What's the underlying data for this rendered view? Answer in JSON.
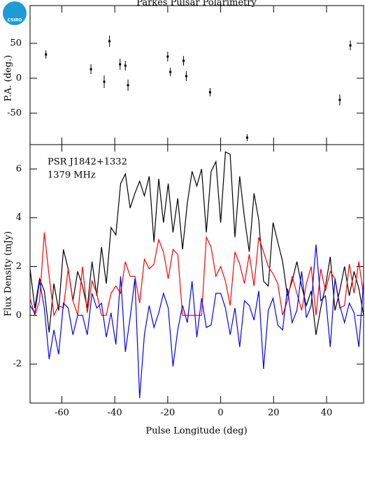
{
  "logo": "CSIRO",
  "chart_data": [
    {
      "type": "scatter",
      "title": "Parkes Pulsar Polarimetry",
      "ylabel": "P.A. (deg.)",
      "x": [
        -66,
        -49,
        -44,
        -42,
        -38,
        -36,
        -35,
        -20,
        -19,
        -14,
        -13,
        -4,
        10,
        45,
        49
      ],
      "values": [
        34,
        13,
        -5,
        53,
        20,
        18,
        -10,
        31,
        9,
        25,
        3,
        -20,
        -85,
        -31,
        47
      ],
      "errors": [
        6,
        7,
        9,
        8,
        8,
        7,
        8,
        7,
        6,
        7,
        7,
        6,
        5,
        8,
        7
      ],
      "color": "#000000",
      "xlim": [
        -72,
        54
      ],
      "ylim": [
        -95,
        104
      ],
      "yticks": [
        -50,
        0,
        50
      ]
    },
    {
      "type": "line",
      "annotations": [
        "PSR J1842+1332",
        "1379 MHz"
      ],
      "xlabel": "Pulse Longitude (deg)",
      "ylabel": "Flux Density (mJy)",
      "x": [
        -72,
        -70.2,
        -68.4,
        -66.6,
        -64.8,
        -63,
        -61.2,
        -59.4,
        -57.6,
        -55.8,
        -54,
        -52.2,
        -50.4,
        -48.6,
        -46.8,
        -45,
        -43.2,
        -41.4,
        -39.6,
        -37.8,
        -36,
        -34.2,
        -32.4,
        -30.6,
        -28.8,
        -27,
        -25.2,
        -23.4,
        -21.6,
        -19.8,
        -18,
        -16.2,
        -14.4,
        -12.6,
        -10.8,
        -9,
        -7.2,
        -5.4,
        -3.6,
        -1.8,
        0,
        1.8,
        3.6,
        5.4,
        7.2,
        9,
        10.8,
        12.6,
        14.4,
        16.2,
        18,
        19.8,
        21.6,
        23.4,
        25.2,
        27,
        28.8,
        30.6,
        32.4,
        34.2,
        36,
        37.8,
        39.6,
        41.4,
        43.2,
        45,
        46.8,
        48.6,
        50.4,
        52.2,
        54
      ],
      "series": [
        {
          "color": "#000000",
          "values": [
            1.9,
            0.3,
            1.5,
            1.0,
            -0.7,
            1.3,
            0.2,
            2.7,
            1.9,
            0.6,
            1.8,
            1.2,
            0.3,
            2.2,
            0.8,
            2.8,
            1.3,
            3.6,
            3.3,
            5.4,
            5.8,
            4.4,
            5.0,
            5.5,
            4.9,
            5.7,
            3.0,
            5.6,
            3.8,
            5.4,
            3.4,
            4.8,
            2.7,
            4.6,
            5.9,
            5.3,
            6.0,
            3.4,
            5.9,
            6.3,
            3.8,
            6.7,
            6.6,
            3.2,
            5.7,
            4.0,
            2.6,
            5.0,
            3.9,
            1.4,
            1.2,
            3.8,
            3.0,
            2.2,
            0.8,
            1.4,
            2.2,
            1.2,
            0.4,
            1.0,
            -0.8,
            0.3,
            1.2,
            2.4,
            0.2,
            1.0,
            2.0,
            0.8,
            1.8,
            1.1,
            0.0
          ]
        },
        {
          "color": "#ff0000",
          "values": [
            0.7,
            0,
            0.6,
            3.4,
            1.6,
            0,
            0.4,
            0.3,
            1.9,
            0.6,
            0,
            2.0,
            0.1,
            1.4,
            0.9,
            0,
            0,
            0.9,
            1.2,
            0.9,
            2.2,
            1.6,
            1.6,
            0.5,
            2.3,
            1.9,
            2.1,
            3.1,
            2.6,
            1.5,
            2.7,
            2.5,
            0,
            0,
            0,
            0,
            0,
            3.2,
            2.8,
            1.6,
            2.0,
            1.4,
            0.4,
            2.6,
            2.1,
            1.3,
            2.5,
            1.2,
            3.2,
            2.6,
            2.0,
            1.7,
            1.3,
            0,
            0.6,
            1.6,
            0.9,
            0.2,
            1.3,
            2.0,
            0,
            1.9,
            1.0,
            1.8,
            1.5,
            0.3,
            0.4,
            2.1,
            0.9,
            2.2,
            0.8
          ]
        },
        {
          "color": "#0000ff",
          "values": [
            0.4,
            0.1,
            1.4,
            0.3,
            -1.8,
            -0.6,
            -1.6,
            0.5,
            0.3,
            -0.8,
            0.0,
            0.0,
            -0.8,
            0.9,
            0.3,
            0.5,
            -0.9,
            0.1,
            -1.2,
            1.6,
            -1.5,
            -0.1,
            1.5,
            -3.4,
            -0.8,
            0.4,
            -0.5,
            0.1,
            0.9,
            0.3,
            -2.1,
            -0.6,
            0.4,
            -0.3,
            1.4,
            -0.9,
            0.7,
            -0.5,
            -0.4,
            0.9,
            0.9,
            0.3,
            -0.8,
            0.3,
            -1.3,
            0.6,
            0.4,
            -0.2,
            1.0,
            -2.2,
            0.2,
            0.7,
            -0.4,
            -0.6,
            1.1,
            -0.3,
            0.2,
            1.8,
            -0.1,
            0.4,
            2.9,
            0.6,
            0.8,
            -1.3,
            1.5,
            0.4,
            -0.3,
            0.5,
            0.1,
            -1.3,
            1.4
          ]
        }
      ],
      "xlim": [
        -72,
        54
      ],
      "xticks": [
        -60,
        -40,
        -20,
        0,
        20,
        40
      ],
      "ylim": [
        -3.6,
        7.0
      ],
      "yticks": [
        -2,
        0,
        2,
        4,
        6
      ]
    }
  ]
}
